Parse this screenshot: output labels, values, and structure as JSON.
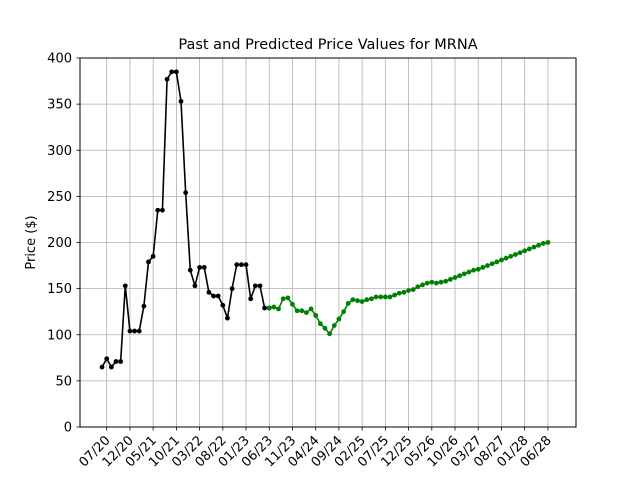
{
  "chart_data": {
    "type": "line",
    "title": "Past and Predicted Price Values for MRNA",
    "xlabel": "",
    "ylabel": "Price ($)",
    "ylim": [
      0,
      400
    ],
    "yticks": [
      0,
      50,
      100,
      150,
      200,
      250,
      300,
      350,
      400
    ],
    "grid": true,
    "x_tick_labels": [
      "07/20",
      "12/20",
      "05/21",
      "10/21",
      "03/22",
      "08/22",
      "01/23",
      "06/23",
      "11/23",
      "04/24",
      "09/24",
      "02/25",
      "07/25",
      "12/25",
      "05/26",
      "10/26",
      "03/27",
      "08/27",
      "01/28",
      "06/28"
    ],
    "x_tick_positions": [
      0,
      5,
      10,
      15,
      20,
      25,
      30,
      35,
      40,
      45,
      50,
      55,
      60,
      65,
      70,
      75,
      80,
      85,
      90,
      95
    ],
    "series": [
      {
        "color": "#000000",
        "x": [
          -1,
          0,
          1,
          2,
          3,
          4,
          5,
          6,
          7,
          8,
          9,
          10,
          11,
          12,
          13,
          14,
          15,
          16,
          17,
          18,
          19,
          20,
          21,
          22,
          23,
          24,
          25,
          26,
          27,
          28,
          29,
          30,
          31,
          32,
          33,
          34,
          35
        ],
        "y": [
          65,
          74,
          65,
          71,
          71,
          153,
          104,
          104,
          104,
          131,
          179,
          185,
          235,
          235,
          377,
          385,
          385,
          353,
          254,
          170,
          153,
          173,
          173,
          146,
          142,
          142,
          132,
          118,
          150,
          176,
          176,
          176,
          139,
          153,
          153,
          129,
          129
        ]
      },
      {
        "color": "#008000",
        "x": [
          35,
          36,
          37,
          38,
          39,
          40,
          41,
          42,
          43,
          44,
          45,
          46,
          47,
          48,
          49,
          50,
          51,
          52,
          53,
          54,
          55,
          56,
          57,
          58,
          59,
          60,
          61,
          62,
          63,
          64,
          65,
          66,
          67,
          68,
          69,
          70,
          71,
          72,
          73,
          74,
          75,
          76,
          77,
          78,
          79,
          80,
          81,
          82,
          83,
          84,
          85,
          86,
          87,
          88,
          89,
          90,
          91,
          92,
          93,
          94,
          95
        ],
        "y": [
          129,
          130,
          128,
          139,
          140,
          133,
          126,
          126,
          124,
          128,
          121,
          112,
          107,
          101,
          110,
          117,
          125,
          134,
          138,
          137,
          136,
          138,
          139,
          141,
          141,
          141,
          141,
          143,
          145,
          146,
          148,
          149,
          152,
          154,
          156,
          157,
          156,
          157,
          158,
          160,
          162,
          164,
          166,
          168,
          170,
          171,
          173,
          175,
          177,
          179,
          181,
          183,
          185,
          187,
          189,
          191,
          193,
          195,
          197,
          199,
          200
        ]
      }
    ]
  }
}
